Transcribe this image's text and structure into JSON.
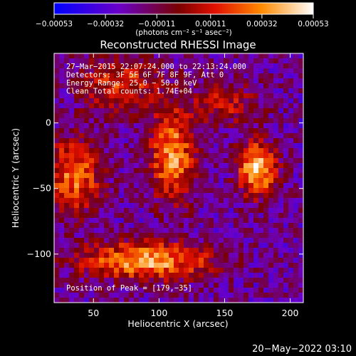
{
  "chart_data": {
    "type": "heatmap",
    "title": "Reconstructed RHESSI Image",
    "xlabel": "Heliocentric X (arcsec)",
    "ylabel": "Heliocentric Y (arcsec)",
    "xlim": [
      20,
      210
    ],
    "ylim": [
      -137,
      53
    ],
    "x_ticks": [
      50,
      100,
      150,
      200
    ],
    "y_ticks": [
      0,
      -50,
      -100
    ],
    "x_tick_labels": [
      "50",
      "100",
      "150",
      "200"
    ],
    "y_tick_labels": [
      "0",
      "−50",
      "−100"
    ],
    "colorbar": {
      "ticks": [
        -0.00053,
        -0.00032,
        -0.00011,
        0.00011,
        0.00032,
        0.00053
      ],
      "tick_labels": [
        "−0.00053",
        "−0.00032",
        "−0.00011",
        "0.00011",
        "0.00032",
        "0.00053"
      ],
      "range": [
        -0.00053,
        0.00053
      ],
      "units": "(photons cm⁻² s⁻¹ asec⁻²)",
      "colors": [
        "#0000ff",
        "#6b00c8",
        "#7a0000",
        "#e01000",
        "#ff8a00",
        "#ffffff"
      ]
    },
    "annotations": [
      "27−Mar−2015 22:07:24.000 to 22:13:24.000",
      "Detectors: 3F 5F 6F 7F 8F 9F, Att 0",
      "Energy Range: 25.0 − 50.0 keV",
      "Clean     Total counts: 1.74E+04"
    ],
    "peak_label": "Position of Peak = [179,−35]",
    "peak": [
      179,
      -35
    ],
    "features": [
      {
        "x": 175,
        "y": -35,
        "sx": 10,
        "sy": 14,
        "amp": 1.0
      },
      {
        "x": 90,
        "y": -105,
        "sx": 35,
        "sy": 10,
        "amp": 0.85
      },
      {
        "x": 110,
        "y": -25,
        "sx": 12,
        "sy": 25,
        "amp": 0.8
      },
      {
        "x": 35,
        "y": -40,
        "sx": 15,
        "sy": 20,
        "amp": 0.7
      },
      {
        "x": 70,
        "y": 30,
        "sx": 20,
        "sy": 15,
        "amp": 0.55
      },
      {
        "x": 150,
        "y": 15,
        "sx": 18,
        "sy": 12,
        "amp": 0.4
      }
    ]
  },
  "footer": {
    "date": "20−May−2022 03:10"
  }
}
